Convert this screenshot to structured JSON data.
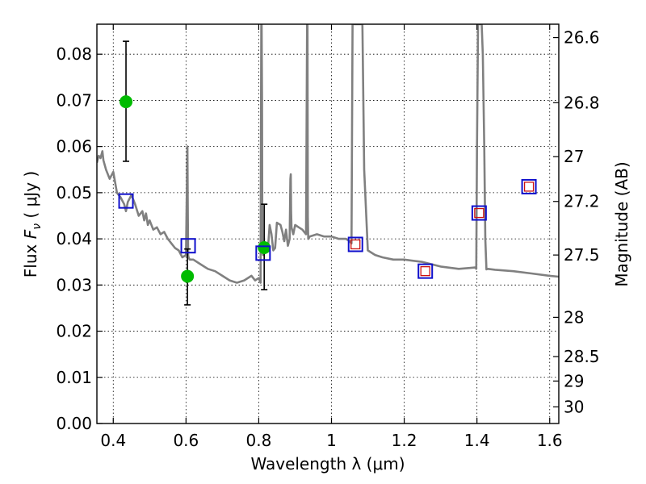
{
  "chart_data": {
    "type": "scatter",
    "xlabel": "Wavelength  λ (μm)",
    "ylabel": "Flux  Fν  ( μJy )",
    "ylabel_parts": {
      "prefix": "Flux  ",
      "symbol": "F",
      "subscript": "ν",
      "suffix": "  ( μJy )"
    },
    "ylabel_right": "Magnitude (AB)",
    "xlim": [
      0.355,
      1.625
    ],
    "ylim": [
      0.0,
      0.0865
    ],
    "grid": true,
    "x_ticks": [
      0.4,
      0.6,
      0.8,
      1.0,
      1.2,
      1.4,
      1.6
    ],
    "x_tick_labels": [
      "0.4",
      "0.6",
      "0.8",
      "1",
      "1.2",
      "1.4",
      "1.6"
    ],
    "y_ticks": [
      0.0,
      0.01,
      0.02,
      0.03,
      0.04,
      0.05,
      0.06,
      0.07,
      0.08
    ],
    "y_tick_labels": [
      "0.00",
      "0.01",
      "0.02",
      "0.03",
      "0.04",
      "0.05",
      "0.06",
      "0.07",
      "0.08"
    ],
    "mag_ticks": [
      {
        "label": "26.6",
        "flux": 0.0836
      },
      {
        "label": "26.8",
        "flux": 0.0695
      },
      {
        "label": "27",
        "flux": 0.0578
      },
      {
        "label": "27.2",
        "flux": 0.0481
      },
      {
        "label": "27.5",
        "flux": 0.0365
      },
      {
        "label": "28",
        "flux": 0.023
      },
      {
        "label": "28.5",
        "flux": 0.0145
      },
      {
        "label": "29",
        "flux": 0.0092
      },
      {
        "label": "30",
        "flux": 0.0036
      }
    ],
    "colors": {
      "model": "#808080",
      "observed": "#00bb00",
      "errorbar": "#000000",
      "synthetic": "#1010cc",
      "synthetic_inner": "#cc1010"
    },
    "series": [
      {
        "name": "model spectrum",
        "kind": "line",
        "x": [
          0.355,
          0.36,
          0.365,
          0.37,
          0.373,
          0.38,
          0.39,
          0.4,
          0.41,
          0.42,
          0.43,
          0.435,
          0.44,
          0.45,
          0.46,
          0.47,
          0.48,
          0.485,
          0.49,
          0.495,
          0.5,
          0.51,
          0.52,
          0.53,
          0.54,
          0.55,
          0.56,
          0.57,
          0.58,
          0.59,
          0.6,
          0.603,
          0.604,
          0.605,
          0.606,
          0.607,
          0.61,
          0.62,
          0.64,
          0.66,
          0.68,
          0.7,
          0.72,
          0.74,
          0.76,
          0.78,
          0.79,
          0.8,
          0.805,
          0.806,
          0.807,
          0.808,
          0.809,
          0.81,
          0.812,
          0.82,
          0.825,
          0.83,
          0.835,
          0.84,
          0.845,
          0.85,
          0.86,
          0.865,
          0.87,
          0.875,
          0.88,
          0.885,
          0.887,
          0.888,
          0.889,
          0.89,
          0.895,
          0.9,
          0.91,
          0.92,
          0.93,
          0.933,
          0.934,
          0.935,
          0.936,
          0.937,
          0.94,
          0.96,
          0.98,
          1.0,
          1.02,
          1.04,
          1.05,
          1.055,
          1.058,
          1.062,
          1.066,
          1.07,
          1.072,
          1.076,
          1.08,
          1.085,
          1.09,
          1.1,
          1.12,
          1.14,
          1.17,
          1.2,
          1.25,
          1.3,
          1.35,
          1.38,
          1.395,
          1.398,
          1.4,
          1.403,
          1.406,
          1.41,
          1.413,
          1.416,
          1.42,
          1.423,
          1.426,
          1.43,
          1.45,
          1.5,
          1.55,
          1.6,
          1.625
        ],
        "y": [
          0.0565,
          0.058,
          0.0575,
          0.059,
          0.057,
          0.055,
          0.053,
          0.0545,
          0.05,
          0.049,
          0.0475,
          0.046,
          0.048,
          0.0495,
          0.0475,
          0.045,
          0.046,
          0.044,
          0.0455,
          0.043,
          0.044,
          0.042,
          0.0425,
          0.041,
          0.0415,
          0.04,
          0.039,
          0.038,
          0.0375,
          0.036,
          0.0365,
          0.055,
          0.06,
          0.045,
          0.0365,
          0.036,
          0.0355,
          0.0355,
          0.0345,
          0.0335,
          0.033,
          0.032,
          0.031,
          0.0305,
          0.031,
          0.032,
          0.031,
          0.0315,
          0.0305,
          0.06,
          0.0865,
          0.0865,
          0.07,
          0.038,
          0.0365,
          0.038,
          0.0375,
          0.043,
          0.041,
          0.0375,
          0.038,
          0.0435,
          0.043,
          0.0415,
          0.0395,
          0.042,
          0.0385,
          0.04,
          0.053,
          0.054,
          0.046,
          0.0425,
          0.041,
          0.043,
          0.0425,
          0.042,
          0.041,
          0.0865,
          0.0865,
          0.045,
          0.04,
          0.04,
          0.0405,
          0.041,
          0.0405,
          0.0405,
          0.04,
          0.04,
          0.0395,
          0.039,
          0.0865,
          0.0865,
          0.0865,
          0.0865,
          0.0865,
          0.0865,
          0.0865,
          0.0865,
          0.055,
          0.0375,
          0.0365,
          0.036,
          0.0355,
          0.0355,
          0.035,
          0.034,
          0.0335,
          0.0337,
          0.0338,
          0.0335,
          0.06,
          0.0865,
          0.0865,
          0.0865,
          0.0865,
          0.08,
          0.06,
          0.04,
          0.0334,
          0.0335,
          0.0333,
          0.033,
          0.0325,
          0.032,
          0.0318
        ]
      },
      {
        "name": "observed photometry",
        "kind": "points",
        "points": [
          {
            "x": 0.435,
            "y": 0.0697,
            "ylow": 0.0568,
            "yhigh": 0.0828
          },
          {
            "x": 0.604,
            "y": 0.0319,
            "ylow": 0.0257,
            "yhigh": 0.0378
          },
          {
            "x": 0.815,
            "y": 0.0381,
            "ylow": 0.029,
            "yhigh": 0.0475
          }
        ]
      },
      {
        "name": "synthetic photometry",
        "kind": "squares",
        "points": [
          {
            "x": 0.435,
            "y": 0.0482,
            "inner": false
          },
          {
            "x": 0.606,
            "y": 0.0385,
            "inner": false
          },
          {
            "x": 0.812,
            "y": 0.0369,
            "inner": false
          },
          {
            "x": 1.066,
            "y": 0.0388,
            "inner": true
          },
          {
            "x": 1.258,
            "y": 0.033,
            "inner": true
          },
          {
            "x": 1.406,
            "y": 0.0456,
            "inner": true
          },
          {
            "x": 1.543,
            "y": 0.0513,
            "inner": true
          }
        ]
      }
    ]
  }
}
